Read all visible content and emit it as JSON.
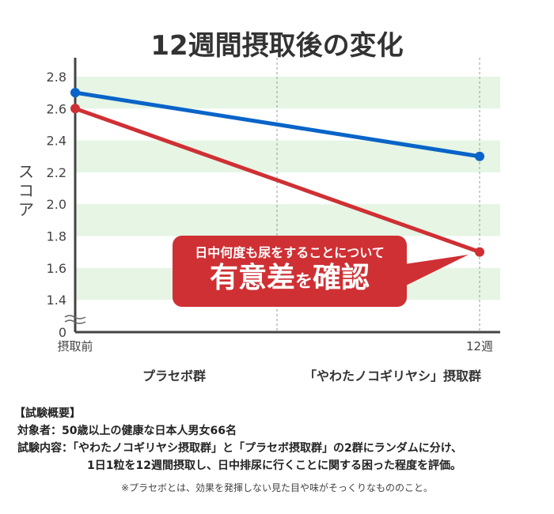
{
  "chart_data": {
    "type": "line",
    "title": "12週間摂取後の変化",
    "ylabel": "スコア",
    "categories": [
      "摂取前",
      "12週"
    ],
    "y_ticks": [
      "0",
      "1.4",
      "1.6",
      "1.8",
      "2.0",
      "2.2",
      "2.4",
      "2.6",
      "2.8"
    ],
    "ylim": [
      1.3,
      2.9
    ],
    "axis_break": true,
    "series": [
      {
        "name": "プラセボ群",
        "values": [
          2.7,
          2.3
        ],
        "color": "#0a64c8"
      },
      {
        "name": "「やわたノコギリヤシ」摂取群",
        "values": [
          2.6,
          1.7
        ],
        "color": "#cf3034"
      }
    ],
    "band_color": "#e6f5e4",
    "annotation": {
      "line1": "日中何度も尿をすることについて",
      "line2_a": "有意差",
      "line2_b": "を",
      "line2_c": "確認"
    }
  },
  "summary": {
    "heading": "【試験概要】",
    "line1": "対象者：50歳以上の健康な日本人男女66名",
    "line2": "試験内容：「やわたノコギリヤシ摂取群」と「プラセボ摂取群」の2群にランダムに分け、",
    "line3": "1日1粒を12週間摂取し、日中排尿に行くことに関する困った程度を評価。"
  },
  "note": "※プラセボとは、効果を発揮しない見た目や味がそっくりなもののこと。"
}
